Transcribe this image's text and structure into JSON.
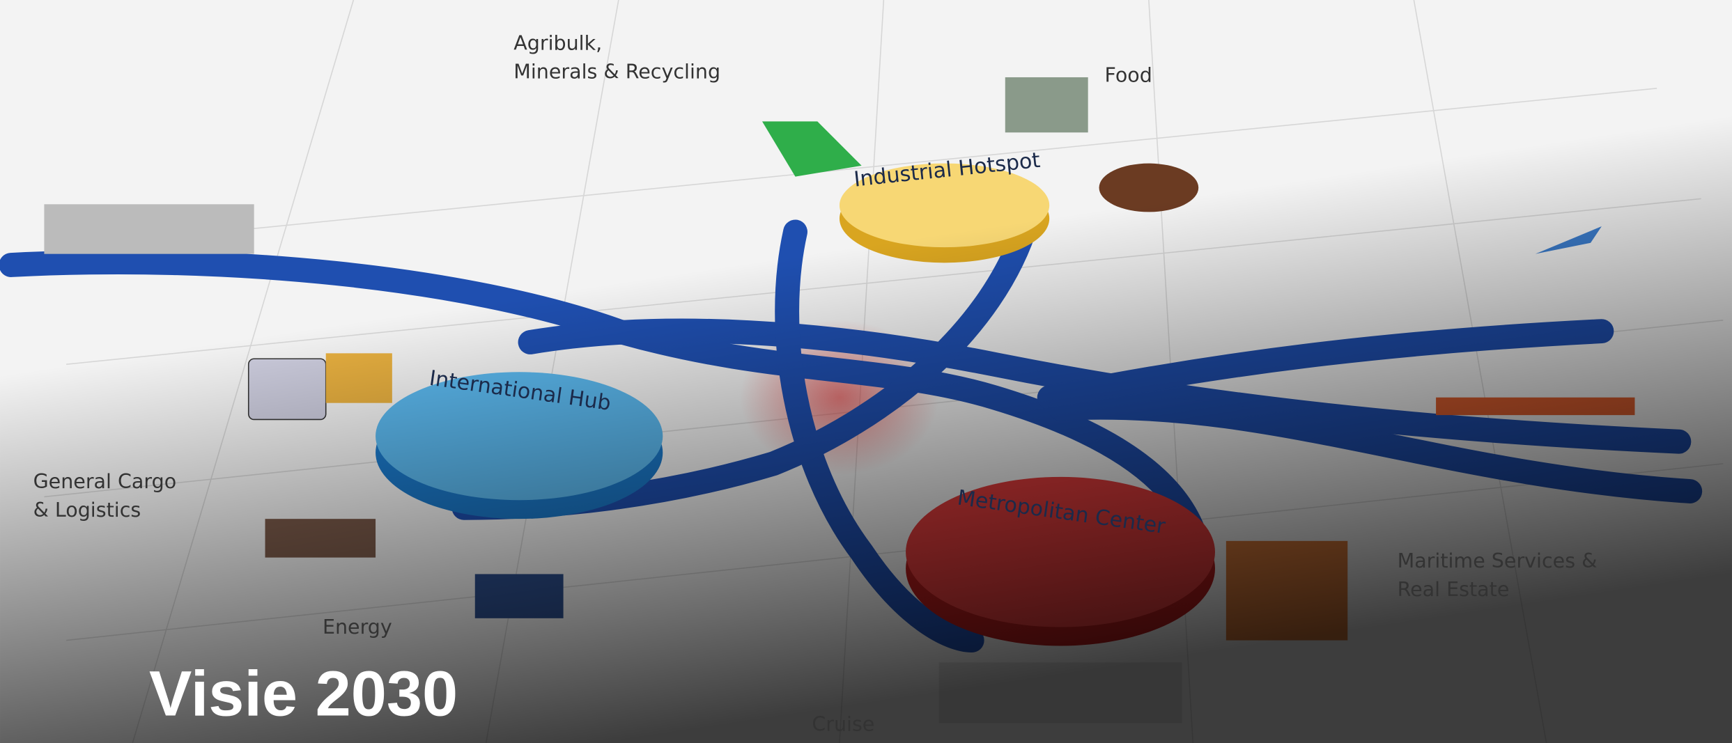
{
  "title": "Visie 2030",
  "hubs": [
    {
      "label": "International Hub"
    },
    {
      "label": "Industrial Hotspot"
    },
    {
      "label": "Metropolitan Center"
    }
  ],
  "sectors": [
    {
      "lines": [
        "Agribulk,",
        "Minerals & Recycling"
      ]
    },
    {
      "lines": [
        "Food"
      ]
    },
    {
      "lines": [
        "General Cargo",
        "& Logistics"
      ]
    },
    {
      "lines": [
        "Energy"
      ]
    },
    {
      "lines": [
        "Cruise"
      ]
    },
    {
      "lines": [
        "Maritime Services &",
        "Real Estate"
      ]
    }
  ]
}
